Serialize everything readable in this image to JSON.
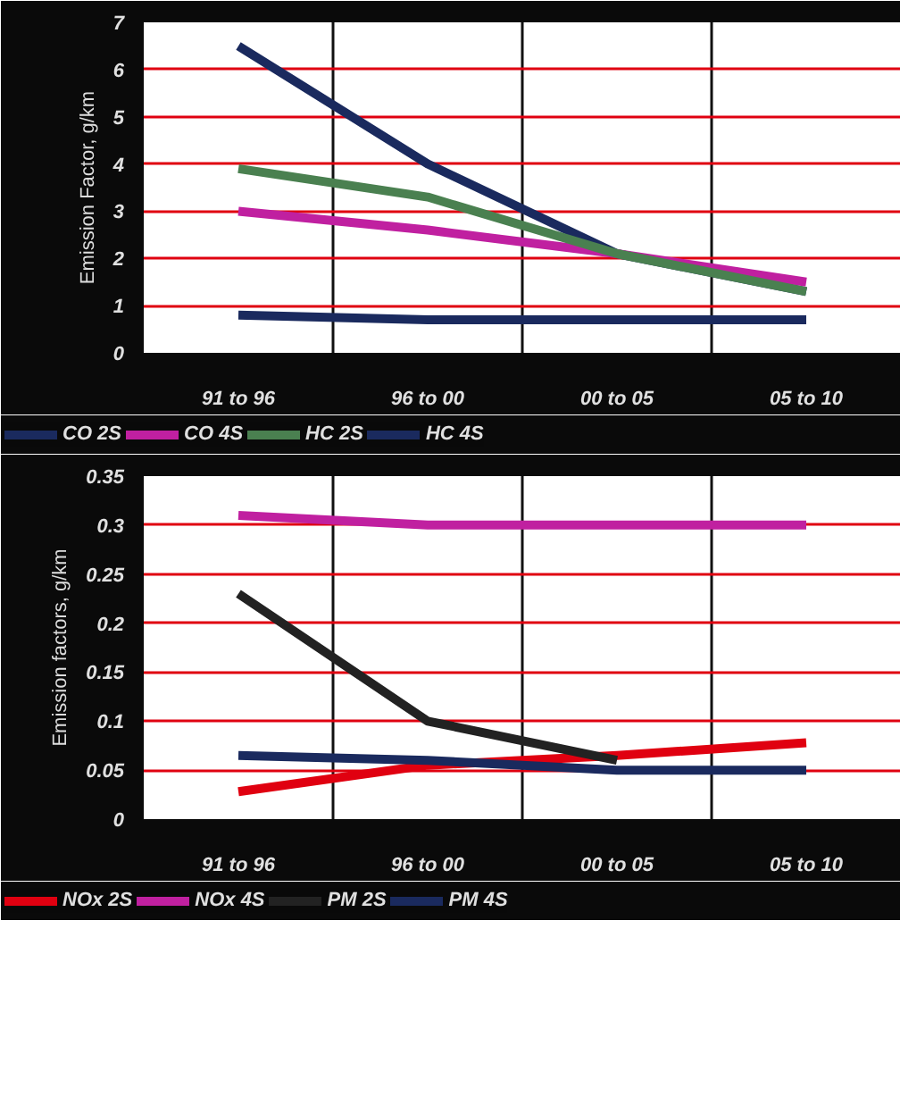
{
  "chart_data": [
    {
      "type": "line",
      "ylabel": "Emission Factor, g/km",
      "categories": [
        "91 to 96",
        "96 to 00",
        "00 to 05",
        "05 to 10"
      ],
      "ylim": [
        0,
        7
      ],
      "yticks": [
        0,
        1,
        2,
        3,
        4,
        5,
        6,
        7
      ],
      "grid": true,
      "legend": "bottom",
      "marker": "none",
      "line_style": "solid",
      "series": [
        {
          "name": "CO 2S",
          "color": "#1a2a5e",
          "values": [
            6.5,
            4.0,
            2.1,
            1.3
          ]
        },
        {
          "name": "CO 4S",
          "color": "#c020a0",
          "values": [
            3.0,
            2.6,
            2.1,
            1.5
          ]
        },
        {
          "name": "HC 2S",
          "color": "#4a8050",
          "values": [
            3.9,
            3.3,
            2.1,
            1.3
          ]
        },
        {
          "name": "HC 4S",
          "color": "#1a2a5e",
          "values": [
            0.8,
            0.7,
            0.7,
            0.7
          ]
        }
      ]
    },
    {
      "type": "line",
      "ylabel": "Emission factors, g/km",
      "categories": [
        "91 to 96",
        "96 to 00",
        "00 to 05",
        "05 to 10"
      ],
      "ylim": [
        0,
        0.35
      ],
      "yticks": [
        0,
        0.05,
        0.1,
        0.15,
        0.2,
        0.25,
        0.3,
        0.35
      ],
      "grid": true,
      "legend": "bottom",
      "marker": "none",
      "line_style": "solid",
      "series": [
        {
          "name": "NOx 2S",
          "color": "#e00010",
          "values": [
            0.028,
            0.055,
            0.065,
            0.078
          ]
        },
        {
          "name": "NOx 4S",
          "color": "#c020a0",
          "values": [
            0.31,
            0.3,
            0.3,
            0.3
          ]
        },
        {
          "name": "PM 2S",
          "color": "#222222",
          "values": [
            0.23,
            0.1,
            0.06,
            null
          ]
        },
        {
          "name": "PM 4S",
          "color": "#1a2a5e",
          "values": [
            0.065,
            0.06,
            0.05,
            0.05
          ]
        }
      ]
    }
  ]
}
